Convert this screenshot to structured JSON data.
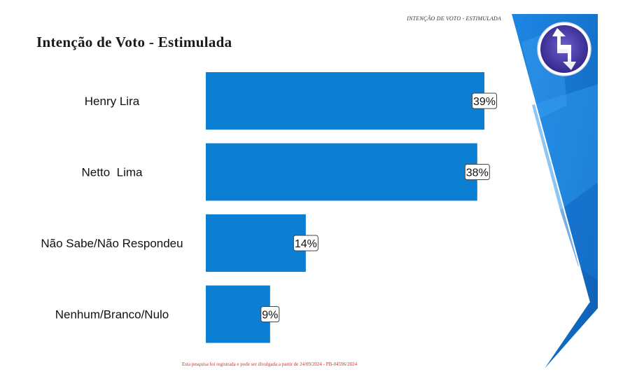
{
  "header": {
    "note": "INTENÇÃO DE VOTO - ESTIMULADA",
    "title": "Intenção de Voto - Estimulada"
  },
  "footer": {
    "note": "Esta pesquisa foi registrada e pode ser divulgada a partir de 24/09/2024 - PB-04596/2024"
  },
  "colors": {
    "bar": "#0d7fd3",
    "accent_dark": "#1565c0",
    "accent_light": "#2d8fe6",
    "logo_purple": "#4a3aa8"
  },
  "chart_data": {
    "type": "bar",
    "orientation": "horizontal",
    "categories": [
      "Henry Lira",
      "Netto  Lima",
      "Não Sabe/Não Respondeu",
      "Nenhum/Branco/Nulo"
    ],
    "values": [
      39,
      38,
      14,
      9
    ],
    "value_labels": [
      "39%",
      "38%",
      "14%",
      "9%"
    ],
    "unit": "%",
    "xlim": [
      0,
      40
    ],
    "grid": false,
    "legend": "none"
  }
}
